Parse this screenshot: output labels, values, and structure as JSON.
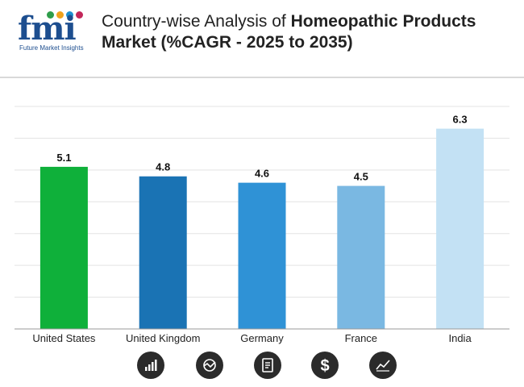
{
  "brand": {
    "logo_text": "fmi",
    "tagline": "Future Market Insights"
  },
  "title": {
    "line1_normal": "Country-wise Analysis of ",
    "line1_bold": "Homeopathic Products",
    "line2_bold": "Market (%CAGR - 2025 to 2035)"
  },
  "chart_data": {
    "type": "bar",
    "categories": [
      "United States",
      "United Kingdom",
      "Germany",
      "France",
      "India"
    ],
    "values": [
      5.1,
      4.8,
      4.6,
      4.5,
      6.3
    ],
    "colors": [
      "#0fb03a",
      "#1a73b4",
      "#2f92d6",
      "#7ab8e2",
      "#c3e1f4"
    ],
    "ylim": [
      0,
      7
    ],
    "grid": true,
    "data_labels": true
  },
  "icons": [
    {
      "name": "bar-chart-icon"
    },
    {
      "name": "analysis-icon"
    },
    {
      "name": "report-icon"
    },
    {
      "name": "dollar-icon"
    },
    {
      "name": "trend-icon"
    }
  ]
}
